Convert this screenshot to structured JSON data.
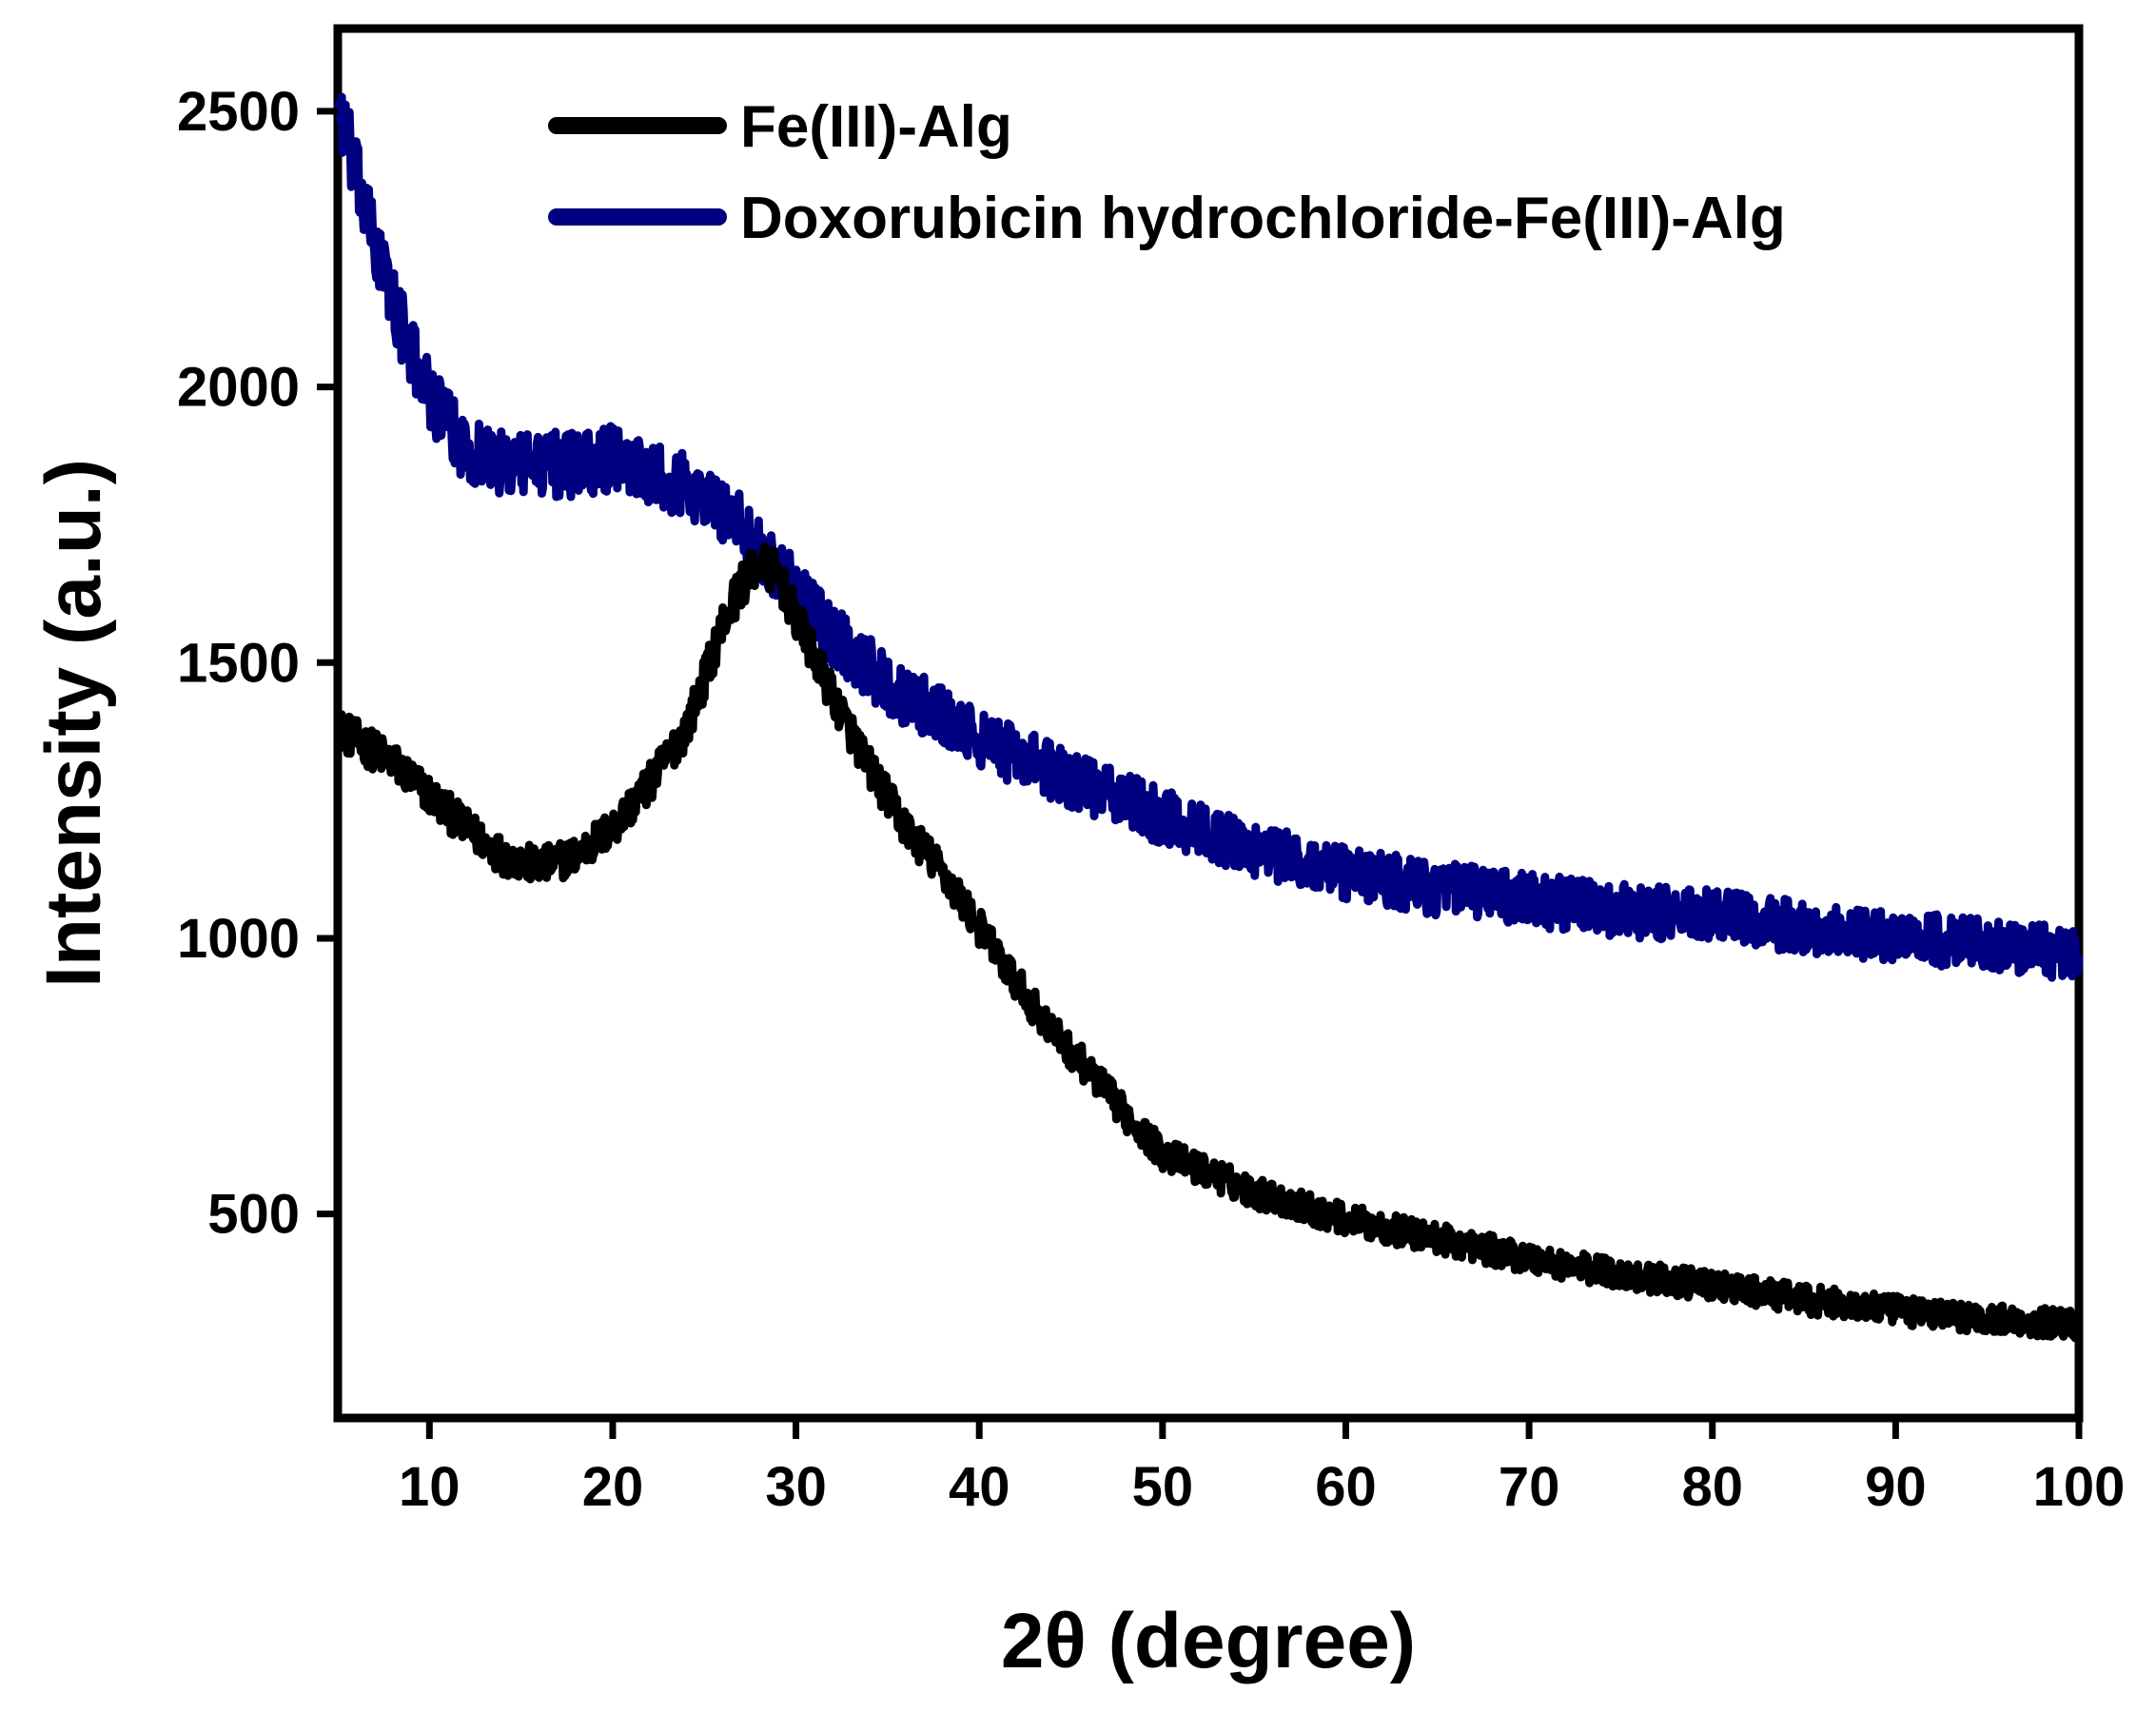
{
  "chart_data": {
    "type": "line",
    "title": "",
    "xlabel": "2θ (degree)",
    "ylabel": "Intensity (a.u.)",
    "xlim": [
      5,
      100
    ],
    "ylim": [
      130,
      2650
    ],
    "xticks": [
      10,
      20,
      30,
      40,
      50,
      60,
      70,
      80,
      90,
      100
    ],
    "yticks": [
      500,
      1000,
      1500,
      2000,
      2500
    ],
    "grid": false,
    "legend_position": "top-right",
    "series": [
      {
        "name": "Fe(III)-Alg",
        "color": "#000000",
        "x": [
          5,
          8,
          10,
          12,
          14,
          16,
          18,
          20,
          22,
          24,
          25,
          26,
          27,
          28,
          29,
          30,
          32,
          34,
          36,
          38,
          40,
          42,
          44,
          46,
          48,
          50,
          55,
          60,
          65,
          70,
          75,
          80,
          85,
          90,
          95,
          100
        ],
        "y": [
          1380,
          1320,
          1260,
          1200,
          1150,
          1130,
          1150,
          1200,
          1280,
          1380,
          1470,
          1570,
          1640,
          1680,
          1660,
          1580,
          1440,
          1310,
          1200,
          1120,
          1020,
          920,
          830,
          760,
          680,
          610,
          540,
          490,
          455,
          420,
          390,
          370,
          345,
          325,
          310,
          300
        ]
      },
      {
        "name": "Doxorubicin hydrochloride-Fe(III)-Alg",
        "color": "#000080",
        "x": [
          5,
          6,
          7,
          8,
          9,
          10,
          11,
          12,
          14,
          16,
          18,
          20,
          22,
          24,
          26,
          28,
          30,
          32,
          35,
          38,
          40,
          45,
          50,
          55,
          60,
          65,
          70,
          75,
          80,
          85,
          90,
          95,
          100
        ],
        "y": [
          2520,
          2380,
          2260,
          2160,
          2060,
          1990,
          1930,
          1890,
          1860,
          1860,
          1860,
          1870,
          1850,
          1820,
          1780,
          1710,
          1630,
          1550,
          1460,
          1400,
          1360,
          1290,
          1220,
          1160,
          1120,
          1090,
          1070,
          1050,
          1040,
          1020,
          1000,
          990,
          970
        ]
      }
    ]
  }
}
